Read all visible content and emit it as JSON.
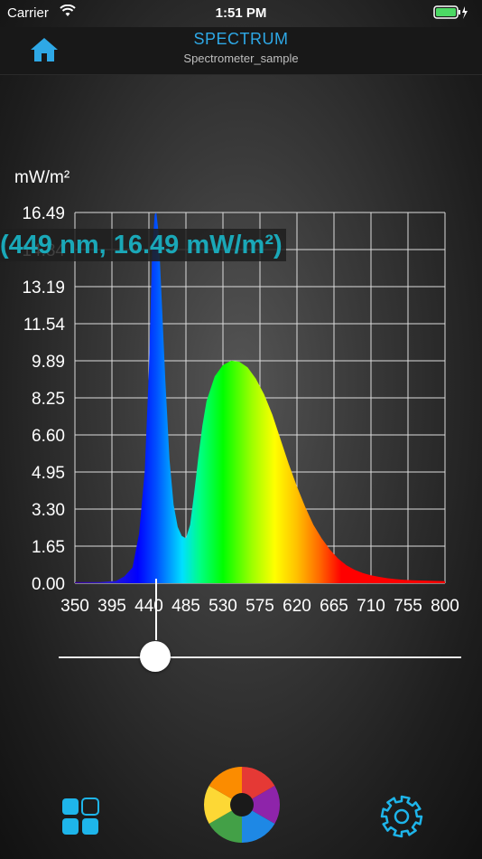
{
  "status": {
    "carrier": "Carrier",
    "time": "1:51 PM"
  },
  "header": {
    "title": "SPECTRUM",
    "subtitle": "Spectrometer_sample",
    "home_icon": "home-icon"
  },
  "readout": {
    "text": "(449 nm, 16.49 mW/m²)",
    "wavelength_nm": 449,
    "value": 16.49
  },
  "colors": {
    "accent": "#2ea8e6",
    "readout": "#1aa8b8"
  },
  "slider": {
    "position": 0.22
  },
  "chart_data": {
    "type": "area",
    "ylabel": "mW/m²",
    "xlim": [
      350,
      800
    ],
    "ylim": [
      0,
      16.49
    ],
    "x_ticks": [
      "350",
      "395",
      "440",
      "485",
      "530",
      "575",
      "620",
      "665",
      "710",
      "755",
      "800"
    ],
    "y_ticks": [
      "0.00",
      "1.65",
      "3.30",
      "4.95",
      "6.60",
      "8.25",
      "9.89",
      "11.54",
      "13.19",
      "14.84",
      "16.49"
    ],
    "grid": true,
    "series": [
      {
        "x": [
          350,
          380,
          400,
          410,
          420,
          428,
          435,
          440,
          444,
          447,
          449,
          452,
          455,
          460,
          465,
          470,
          475,
          480,
          485,
          490,
          495,
          500,
          505,
          510,
          520,
          530,
          540,
          550,
          560,
          570,
          580,
          590,
          600,
          610,
          620,
          630,
          640,
          650,
          660,
          670,
          680,
          690,
          700,
          710,
          720,
          730,
          740,
          750,
          760,
          770,
          780,
          790,
          800
        ],
        "values": [
          0.05,
          0.05,
          0.1,
          0.3,
          0.7,
          2.2,
          5.0,
          9.5,
          14.8,
          16.4,
          16.49,
          15.5,
          13.0,
          9.0,
          5.5,
          3.5,
          2.5,
          2.1,
          2.0,
          2.6,
          4.0,
          5.6,
          7.0,
          8.1,
          9.2,
          9.7,
          9.9,
          9.85,
          9.6,
          9.1,
          8.4,
          7.5,
          6.4,
          5.3,
          4.3,
          3.4,
          2.6,
          2.0,
          1.5,
          1.1,
          0.8,
          0.6,
          0.45,
          0.35,
          0.28,
          0.22,
          0.18,
          0.15,
          0.13,
          0.12,
          0.11,
          0.1,
          0.09
        ]
      }
    ]
  },
  "bottom": {
    "grid_icon": "grid-icon",
    "capture_icon": "aperture-icon",
    "settings_icon": "gear-icon"
  }
}
